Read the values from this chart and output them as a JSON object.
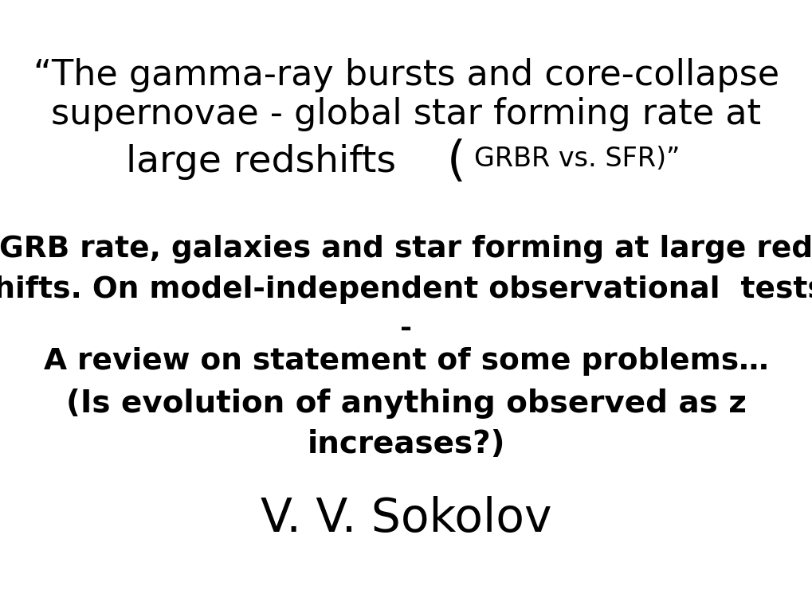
{
  "background_color": "#ffffff",
  "text_color": "#000000",
  "title_line1": "“The gamma-ray bursts and core-collapse",
  "title_line2": "supernovae - global star forming rate at",
  "title_line3_main": "large redshifts   ",
  "title_line3_paren": "(",
  "title_line3_rest": "GRBR vs. SFR)”",
  "body_line1": "GRB rate, galaxies and star forming at large red",
  "body_line2": "shifts. On model-independent observational  tests.",
  "body_dash": "-",
  "body_line3": "A review on statement of some problems…",
  "body_bold1": "(Is evolution of anything observed as z",
  "body_bold2": "increases?)",
  "author": "V. V. Sokolov",
  "title_fontsize": 32,
  "title_line3_main_fontsize": 34,
  "title_line3_paren_fontsize": 44,
  "title_line3_rest_fontsize": 24,
  "body_fontsize": 27,
  "bold_fontsize": 28,
  "author_fontsize": 42,
  "dash_fontsize": 26
}
